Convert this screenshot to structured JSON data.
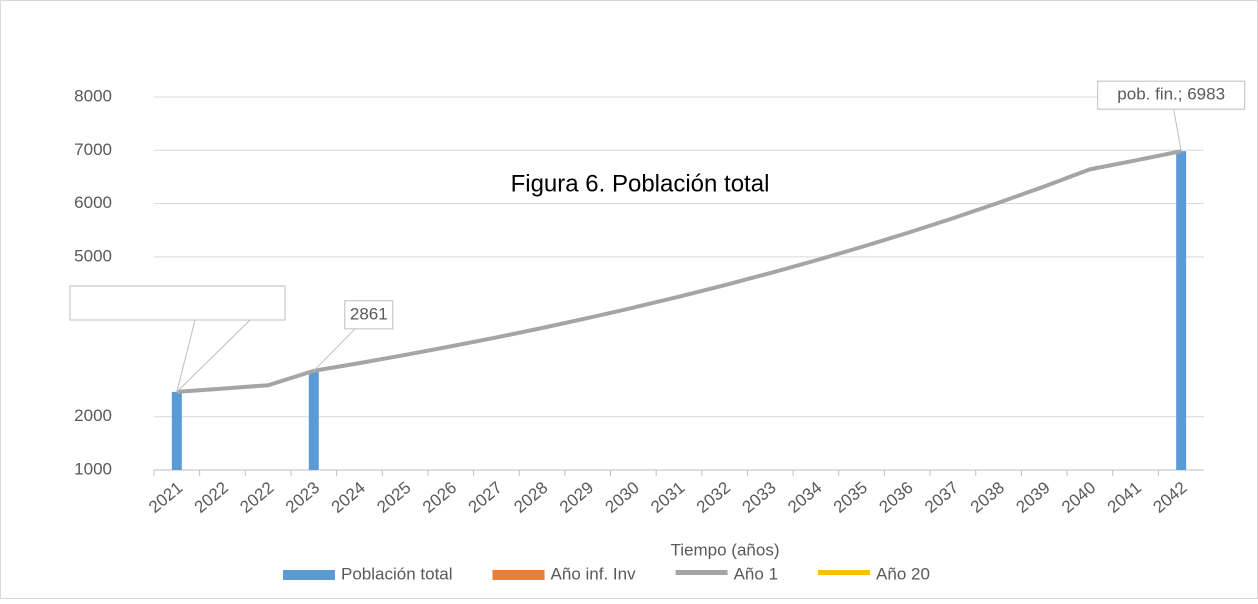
{
  "chart_data": {
    "type": "bar_line",
    "title": "Figura 6. Población total",
    "x_label": "Tiempo (años)",
    "categories": [
      "2021",
      "2022",
      "2022",
      "2023",
      "2024",
      "2025",
      "2026",
      "2027",
      "2028",
      "2029",
      "2030",
      "2031",
      "2032",
      "2033",
      "2034",
      "2035",
      "2036",
      "2037",
      "2038",
      "2039",
      "2040",
      "2041",
      "2042"
    ],
    "series": [
      {
        "name": "Población total",
        "kind": "bar",
        "color": "#5b9bd5",
        "values": [
          2466,
          null,
          null,
          2861,
          null,
          null,
          null,
          null,
          null,
          null,
          null,
          null,
          null,
          null,
          null,
          null,
          null,
          null,
          null,
          null,
          null,
          null,
          6983
        ],
        "value_labels": [
          null,
          null,
          null,
          null,
          null,
          null,
          null,
          null,
          null,
          null,
          null,
          null,
          null,
          null,
          null,
          null,
          null,
          null,
          null,
          null,
          null,
          null,
          "pob. fin.; 6983"
        ]
      },
      {
        "name": "Año inf. Inv",
        "kind": "bar",
        "color": "#ed7d31",
        "values": [
          null,
          null,
          null,
          null,
          null,
          null,
          null,
          null,
          null,
          null,
          null,
          null,
          null,
          null,
          null,
          null,
          null,
          null,
          null,
          null,
          null,
          null,
          null
        ]
      },
      {
        "name": "Año 1",
        "kind": "line",
        "color": "#a5a5a5",
        "values": [
          2466,
          2528,
          2591,
          2861,
          3006,
          3159,
          3320,
          3488,
          3665,
          3852,
          4047,
          4253,
          4469,
          4696,
          4934,
          5185,
          5448,
          5725,
          6016,
          6321,
          6642,
          6810,
          6983
        ],
        "value_labels": [
          null,
          null,
          null,
          "2861",
          null,
          null,
          null,
          null,
          null,
          null,
          null,
          null,
          null,
          null,
          null,
          null,
          null,
          null,
          null,
          null,
          null,
          null,
          null
        ]
      },
      {
        "name": "Año 20",
        "kind": "line",
        "color": "#ffc000",
        "values": [
          null,
          null,
          null,
          null,
          null,
          null,
          null,
          null,
          null,
          null,
          null,
          null,
          null,
          null,
          null,
          null,
          null,
          null,
          null,
          null,
          null,
          null,
          null
        ]
      }
    ],
    "ylim": [
      1000,
      8000
    ],
    "yticks": [
      1000,
      2000,
      5000,
      6000,
      7000,
      8000
    ],
    "grid": true
  }
}
